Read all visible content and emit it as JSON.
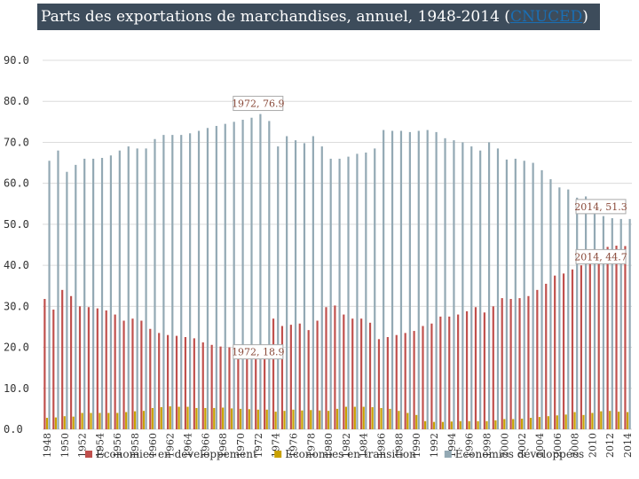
{
  "chart_data": {
    "type": "bar",
    "title": "Parts des exportations de marchandises, annuel, 1948-2014",
    "title_link": "CNUCED",
    "ylim": [
      0,
      90
    ],
    "yticks": [
      "0.0",
      "10.0",
      "20.0",
      "30.0",
      "40.0",
      "50.0",
      "60.0",
      "70.0",
      "80.0",
      "90.0"
    ],
    "grid": true,
    "legend_position": "bottom",
    "categories": [
      1948,
      1949,
      1950,
      1951,
      1952,
      1953,
      1954,
      1955,
      1956,
      1957,
      1958,
      1959,
      1960,
      1961,
      1962,
      1963,
      1964,
      1965,
      1966,
      1967,
      1968,
      1969,
      1970,
      1971,
      1972,
      1973,
      1974,
      1975,
      1976,
      1977,
      1978,
      1979,
      1980,
      1981,
      1982,
      1983,
      1984,
      1985,
      1986,
      1987,
      1988,
      1989,
      1990,
      1991,
      1992,
      1993,
      1994,
      1995,
      1996,
      1997,
      1998,
      1999,
      2000,
      2001,
      2002,
      2003,
      2004,
      2005,
      2006,
      2007,
      2008,
      2009,
      2010,
      2011,
      2012,
      2013,
      2014
    ],
    "series": [
      {
        "name": "Économies en développement",
        "color": "#c0504d",
        "values": [
          31.8,
          29.2,
          34.0,
          32.5,
          30.0,
          29.8,
          29.5,
          29.0,
          28.0,
          26.5,
          27.0,
          26.5,
          24.5,
          23.5,
          23.0,
          22.8,
          22.5,
          22.2,
          21.2,
          20.6,
          20.2,
          20.0,
          19.6,
          19.2,
          18.9,
          20.5,
          27.0,
          25.2,
          25.5,
          25.8,
          24.2,
          26.5,
          29.8,
          30.2,
          28.0,
          27.0,
          27.0,
          26.0,
          22.0,
          22.5,
          23.0,
          23.5,
          24.0,
          25.2,
          25.8,
          27.5,
          27.5,
          28.0,
          28.8,
          29.8,
          28.5,
          30.0,
          32.0,
          31.8,
          32.0,
          32.5,
          34.0,
          35.5,
          37.5,
          38.0,
          39.0,
          40.0,
          42.0,
          43.5,
          44.5,
          44.8,
          44.7
        ]
      },
      {
        "name": "Économies en transition",
        "color": "#c9a100",
        "values": [
          2.8,
          2.9,
          3.2,
          3.1,
          4.0,
          4.0,
          4.0,
          4.0,
          4.0,
          4.2,
          4.4,
          4.5,
          5.2,
          5.4,
          5.6,
          5.5,
          5.5,
          5.2,
          5.2,
          5.2,
          5.3,
          5.1,
          5.0,
          4.9,
          4.8,
          4.8,
          4.3,
          4.5,
          4.8,
          4.6,
          4.7,
          4.6,
          4.5,
          5.0,
          5.5,
          5.5,
          5.5,
          5.4,
          5.2,
          5.0,
          4.5,
          4.0,
          3.5,
          2.0,
          1.8,
          1.8,
          1.9,
          2.0,
          2.0,
          2.0,
          2.0,
          2.2,
          2.5,
          2.5,
          2.6,
          2.8,
          3.0,
          3.2,
          3.4,
          3.6,
          4.2,
          3.5,
          4.0,
          4.4,
          4.5,
          4.3,
          4.2
        ]
      },
      {
        "name": "Économies développées",
        "color": "#93a9b4",
        "values": [
          65.5,
          68.0,
          62.8,
          64.5,
          66.0,
          66.0,
          66.2,
          66.8,
          68.0,
          69.0,
          68.5,
          68.5,
          70.8,
          71.8,
          71.8,
          71.8,
          72.2,
          72.8,
          73.5,
          74.0,
          74.5,
          75.0,
          75.5,
          76.0,
          76.9,
          75.2,
          69.0,
          71.5,
          70.5,
          69.8,
          71.5,
          69.0,
          66.0,
          66.0,
          66.5,
          67.2,
          67.5,
          68.5,
          73.0,
          72.8,
          72.8,
          72.5,
          72.8,
          73.0,
          72.5,
          71.0,
          70.5,
          70.0,
          69.0,
          68.0,
          70.0,
          68.5,
          65.8,
          66.0,
          65.5,
          65.0,
          63.2,
          61.0,
          59.0,
          58.5,
          56.5,
          56.8,
          54.0,
          52.0,
          51.5,
          51.3,
          51.3
        ]
      }
    ],
    "annotations": [
      {
        "label": "1972, 76.9",
        "year": 1972,
        "value": 76.9,
        "series": "Économies développées"
      },
      {
        "label": "1972, 18.9",
        "year": 1972,
        "value": 18.9,
        "series": "Économies en développement"
      },
      {
        "label": "2014, 51.3",
        "year": 2014,
        "value": 51.3,
        "series": "Économies développées"
      },
      {
        "label": "2014, 44.7",
        "year": 2014,
        "value": 44.7,
        "series": "Économies en développement"
      }
    ]
  }
}
